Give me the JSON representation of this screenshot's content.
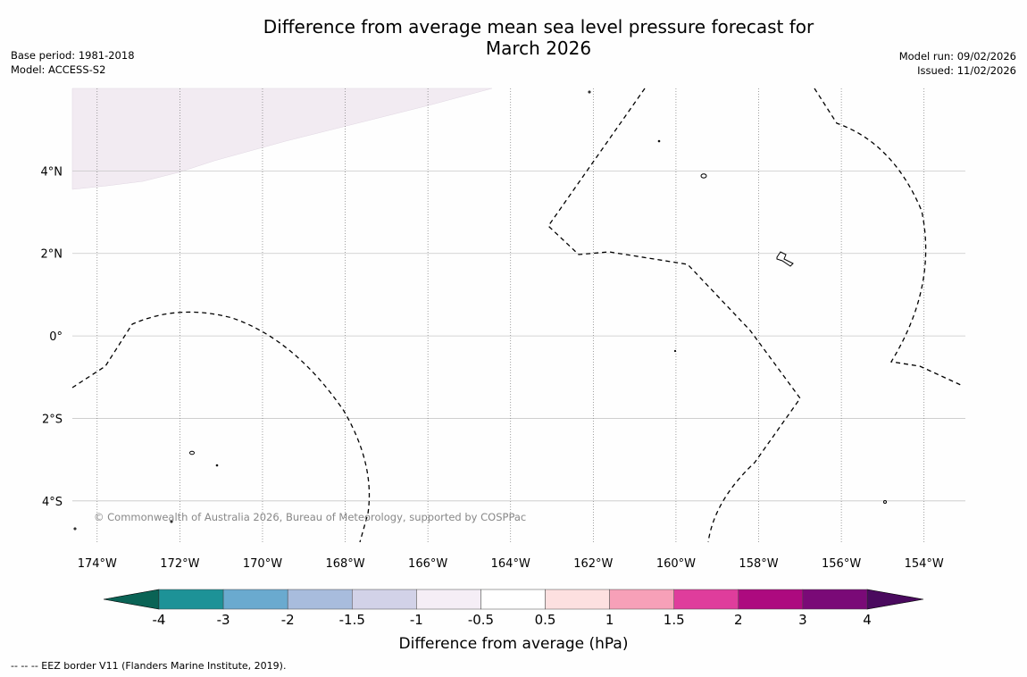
{
  "title": {
    "line1": "Difference from average mean sea level pressure forecast for",
    "line2": "March 2026"
  },
  "header_left": {
    "base_period": "Base period: 1981-2018",
    "model": "Model: ACCESS-S2"
  },
  "header_right": {
    "model_run": "Model run: 09/02/2026",
    "issued": "Issued: 11/02/2026"
  },
  "map": {
    "lat_labels": [
      "4°N",
      "2°N",
      "0°",
      "2°S",
      "4°S"
    ],
    "lat_values": [
      4,
      2,
      0,
      -2,
      -4
    ],
    "lon_labels": [
      "174°W",
      "172°W",
      "170°W",
      "168°W",
      "166°W",
      "164°W",
      "162°W",
      "160°W",
      "158°W",
      "156°W",
      "154°W"
    ],
    "lon_values": [
      -174,
      -172,
      -170,
      -168,
      -166,
      -164,
      -162,
      -160,
      -158,
      -156,
      -154
    ],
    "lon_range": [
      -174.6,
      -153.0
    ],
    "lat_range": [
      -5.0,
      6.0
    ],
    "copyright": "© Commonwealth of Australia 2026, Bureau of Meteorology, supported by COSPPac",
    "shaded_region_category": "-1 to -0.5"
  },
  "colorbar": {
    "label": "Difference from average (hPa)",
    "ticks": [
      "-4",
      "-3",
      "-2",
      "-1.5",
      "-1",
      "-0.5",
      "0.5",
      "1",
      "1.5",
      "2",
      "3",
      "4"
    ],
    "low_extend_color": "#0a6355",
    "high_extend_color": "#4a0a5e",
    "colors": [
      "#1d9297",
      "#6aaacf",
      "#a8bcdd",
      "#d2d2e8",
      "#f5eef6",
      "#ffffff",
      "#fde0e0",
      "#f7a0b8",
      "#df3d9c",
      "#ad0a7f",
      "#7a0a77"
    ]
  },
  "footnote": "--  --  -- EEZ border V11 (Flanders Marine Institute, 2019)."
}
